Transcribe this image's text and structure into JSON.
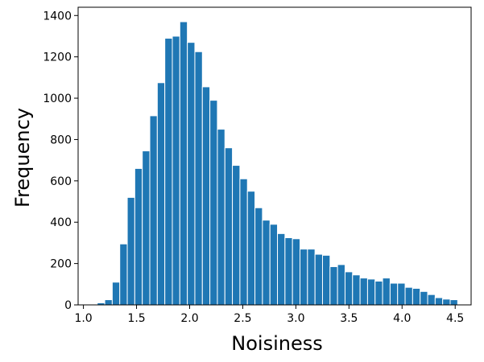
{
  "chart_data": {
    "type": "bar",
    "title": "",
    "xlabel": "Noisiness",
    "ylabel": "Frequency",
    "xlim": [
      0.95,
      4.65
    ],
    "ylim": [
      0,
      1440
    ],
    "xticks": [
      1.0,
      1.5,
      2.0,
      2.5,
      3.0,
      3.5,
      4.0,
      4.5
    ],
    "xtick_labels": [
      "1.0",
      "1.5",
      "2.0",
      "2.5",
      "3.0",
      "3.5",
      "4.0",
      "4.5"
    ],
    "yticks": [
      0,
      200,
      400,
      600,
      800,
      1000,
      1200,
      1400
    ],
    "ytick_labels": [
      "0",
      "200",
      "400",
      "600",
      "800",
      "1000",
      "1200",
      "1400"
    ],
    "grid": false,
    "bar_color": "#1f77b4",
    "edge_color": "#ffffff",
    "bins": {
      "start": 1.13,
      "width": 0.0707,
      "values": [
        10,
        25,
        110,
        295,
        520,
        660,
        745,
        915,
        1075,
        1290,
        1300,
        1370,
        1270,
        1225,
        1055,
        990,
        850,
        760,
        675,
        610,
        550,
        470,
        410,
        390,
        345,
        325,
        320,
        270,
        270,
        245,
        240,
        185,
        195,
        160,
        145,
        130,
        125,
        115,
        130,
        105,
        105,
        85,
        80,
        65,
        50,
        35,
        28,
        25
      ]
    }
  }
}
